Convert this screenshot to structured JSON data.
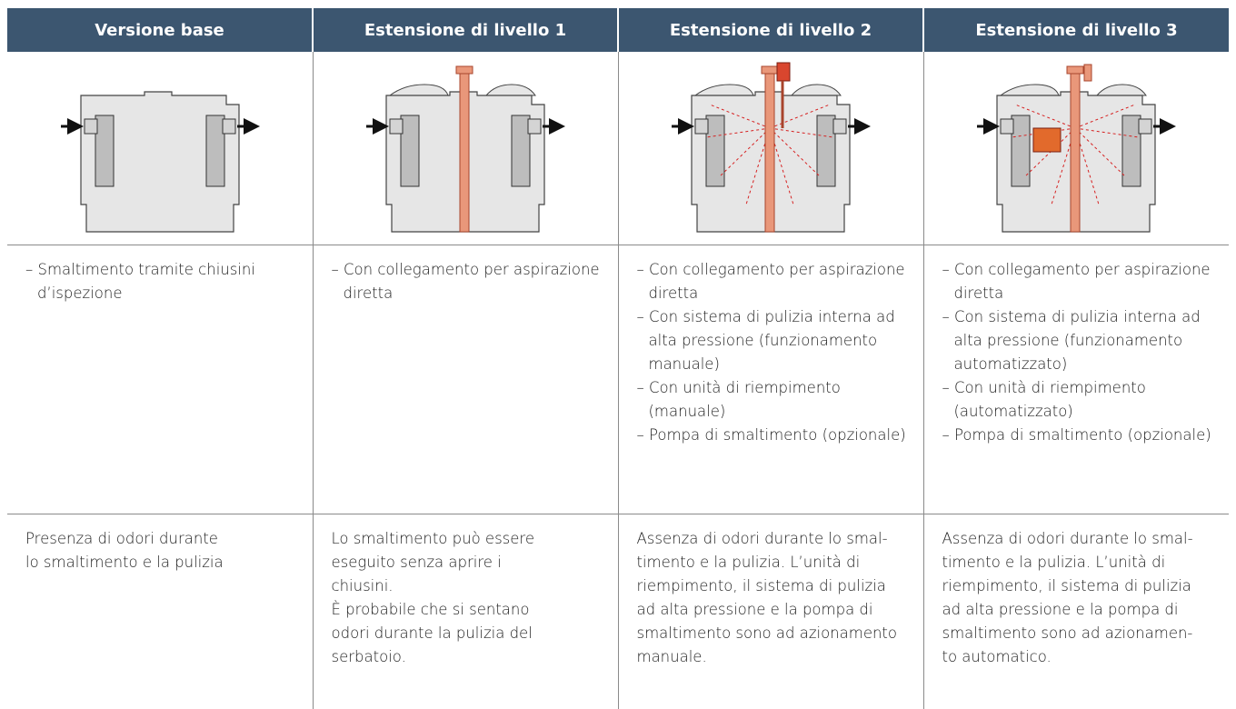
{
  "table": {
    "headers": [
      "Versione base",
      "Estensione di livello 1",
      "Estensione di livello 2",
      "Estensione di livello 3"
    ],
    "features": [
      [
        "– Smaltimento tramite chiusini d’ispezione"
      ],
      [
        "– Con collegamento per aspirazione diretta"
      ],
      [
        "– Con collegamento per aspirazione diretta",
        "– Con sistema di pulizia interna ad alta pressione (funzionamento manuale)",
        "– Con unità di riempimento (manuale)",
        "– Pompa di smaltimento (opzionale)"
      ],
      [
        "– Con collegamento per aspirazione diretta",
        "– Con sistema di pulizia interna ad alta pressione (funzionamento automatizzato)",
        "– Con unità di riempimento (automatizzato)",
        "– Pompa di smaltimento (opzionale)"
      ]
    ],
    "notes": [
      [
        "Presenza di odori durante",
        "lo smaltimento e la pulizia"
      ],
      [
        "Lo smaltimento può essere",
        "eseguito senza aprire i",
        "chiusini.",
        "È probabile che si sentano",
        "odori durante la pulizia del",
        "serbatoio."
      ],
      [
        "Assenza di odori durante lo smal-",
        "timento e la pulizia. L’unità di",
        "riempimento, il sistema di pulizia",
        "ad alta pressione e la pompa di",
        "smaltimento sono ad azionamento",
        "manuale."
      ],
      [
        "Assenza di odori durante lo smal-",
        "timento e la pulizia. L’unità di",
        "riempimento, il sistema di pulizia",
        "ad alta pressione e la pompa di",
        "smaltimento sono ad azionamen-",
        "to automatico."
      ]
    ]
  }
}
